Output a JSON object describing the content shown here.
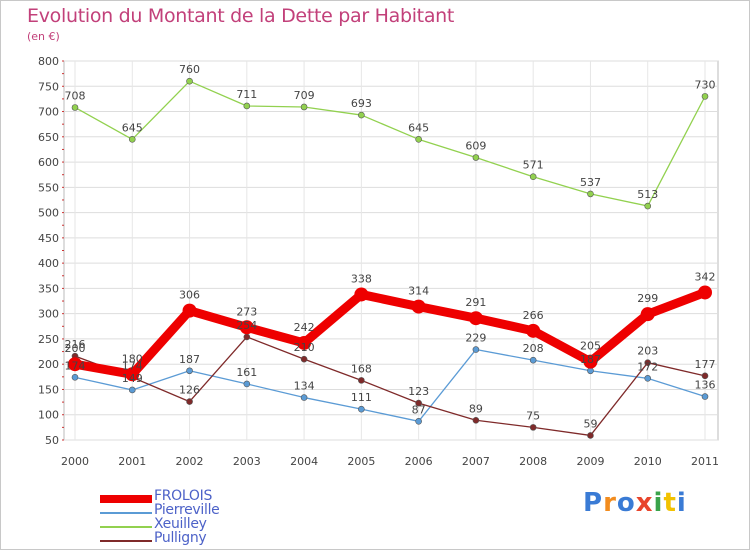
{
  "title": "Evolution du Montant de la Dette par Habitant",
  "subtitle": "(en €)",
  "logo": {
    "text": "Proxiti",
    "colors": [
      "#3a7bd5",
      "#f28c1e",
      "#3a7bd5",
      "#e8452c",
      "#3aa34a",
      "#f2c200",
      "#3a7bd5"
    ]
  },
  "chart_data": {
    "type": "line",
    "x": [
      "2000",
      "2001",
      "2002",
      "2003",
      "2004",
      "2005",
      "2006",
      "2007",
      "2008",
      "2009",
      "2010",
      "2011"
    ],
    "ylim": [
      50,
      800
    ],
    "yticks": [
      50,
      100,
      150,
      200,
      250,
      300,
      350,
      400,
      450,
      500,
      550,
      600,
      650,
      700,
      750,
      800
    ],
    "grid": true,
    "legend_position": "bottom-left",
    "series": [
      {
        "name": "FROLOIS",
        "color": "#ee0000",
        "values": [
          200,
          180,
          306,
          273,
          242,
          338,
          314,
          291,
          266,
          205,
          299,
          342
        ],
        "labels": [
          "200",
          "180",
          "306",
          "273",
          "242",
          "338",
          "314",
          "291",
          "266",
          "205",
          "299",
          "342"
        ]
      },
      {
        "name": "Pierreville",
        "color": "#5b9bd5",
        "values": [
          174,
          149,
          187,
          161,
          134,
          111,
          87,
          229,
          208,
          187,
          172,
          136
        ],
        "labels": [
          "174",
          "149",
          "187",
          "161",
          "134",
          "111",
          "87",
          "229",
          "208",
          "187",
          "172",
          "136"
        ]
      },
      {
        "name": "Xeuilley",
        "color": "#92d14f",
        "values": [
          708,
          645,
          760,
          711,
          709,
          693,
          645,
          609,
          571,
          537,
          513,
          730
        ],
        "labels": [
          "708",
          "645",
          "760",
          "711",
          "709",
          "693",
          "645",
          "609",
          "571",
          "537",
          "513",
          "730"
        ]
      },
      {
        "name": "Pulligny",
        "color": "#7f2a2a",
        "values": [
          216,
          174,
          126,
          254,
          210,
          168,
          123,
          89,
          75,
          59,
          203,
          177
        ],
        "labels": [
          "216",
          "174",
          "126",
          "254",
          "210",
          "168",
          "123",
          "89",
          "75",
          "59",
          "203",
          "177"
        ]
      }
    ]
  }
}
